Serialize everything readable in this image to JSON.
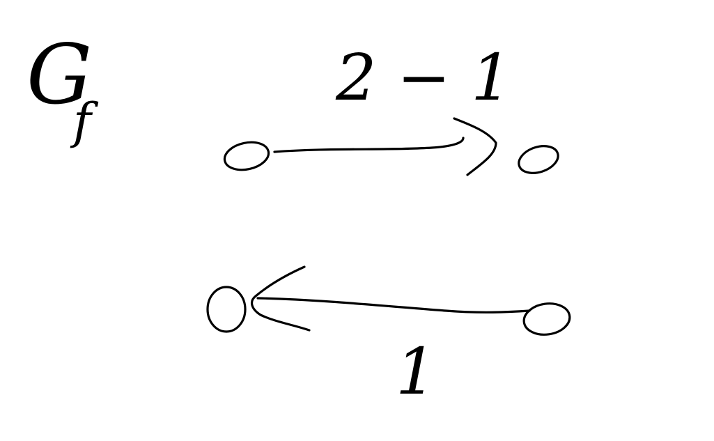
{
  "graph": {
    "label": "G",
    "subscript": "f",
    "nodes": [
      {
        "id": "a"
      },
      {
        "id": "b"
      },
      {
        "id": "c"
      },
      {
        "id": "d"
      }
    ],
    "edges": [
      {
        "from": "a",
        "to": "b",
        "weight": "2 − 1"
      },
      {
        "from": "d",
        "to": "c",
        "weight": "1"
      }
    ]
  },
  "colors": {
    "ink": "#000000",
    "background": "#ffffff"
  }
}
